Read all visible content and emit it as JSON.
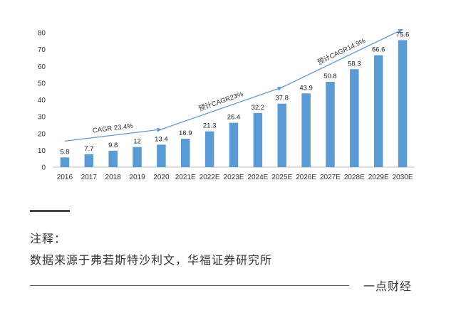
{
  "chart_data": {
    "type": "bar",
    "categories": [
      "2016",
      "2017",
      "2018",
      "2019",
      "2020",
      "2021E",
      "2022E",
      "2023E",
      "2024E",
      "2025E",
      "2026E",
      "2027E",
      "2028E",
      "2029E",
      "2030E"
    ],
    "values": [
      5.8,
      7.7,
      9.8,
      12,
      13.4,
      16.9,
      21.3,
      26.4,
      32.2,
      37.8,
      43.9,
      50.8,
      58.3,
      66.6,
      75.6
    ],
    "value_labels": [
      "5.8",
      "7.7",
      "9.8",
      "12",
      "13.4",
      "16.9",
      "21.3",
      "26.4",
      "32.2",
      "37.8",
      "43.9",
      "50.8",
      "58.3",
      "66.6",
      "75.6"
    ],
    "yticks": [
      0,
      10,
      20,
      30,
      40,
      50,
      60,
      70,
      80
    ],
    "ylim": [
      0,
      80
    ],
    "grid": false,
    "bar_color": "#5b9bd5",
    "arrow_color": "#5b9bd5",
    "annotations": [
      {
        "text": "CAGR 23.4%",
        "from_index": 0,
        "to_index": 4,
        "from_value": 15.5,
        "to_value": 22.5
      },
      {
        "text": "预计CAGR23%",
        "from_index": 4,
        "to_index": 9,
        "from_value": 22.5,
        "to_value": 47.5
      },
      {
        "text": "预计CAGR14.9%",
        "from_index": 9,
        "to_index": 14,
        "from_value": 47.5,
        "to_value": 82
      }
    ]
  },
  "footer": {
    "note_label": "注释：",
    "note_text": "数据来源于弗若斯特沙利文，华福证券研究所",
    "brand": "一点财经"
  }
}
